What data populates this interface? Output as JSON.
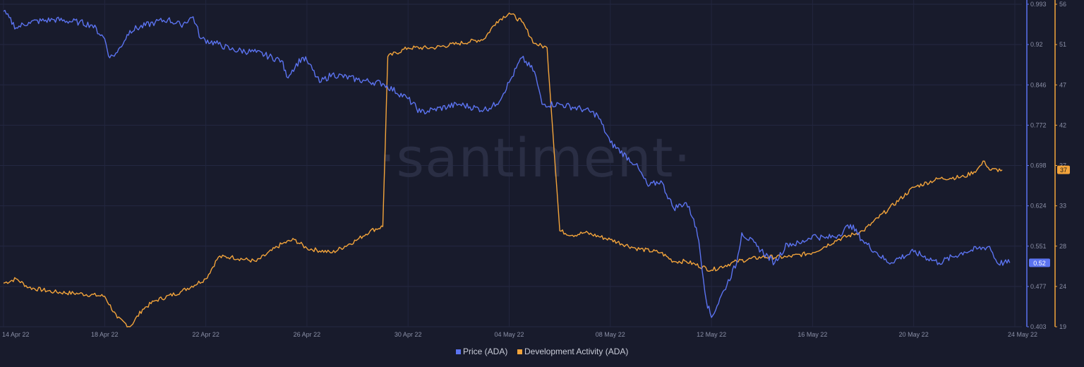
{
  "chart_data": {
    "type": "line",
    "watermark": "·santiment·",
    "x_ticks": [
      "14 Apr 22",
      "18 Apr 22",
      "22 Apr 22",
      "26 Apr 22",
      "30 Apr 22",
      "04 May 22",
      "08 May 22",
      "12 May 22",
      "16 May 22",
      "20 May 22",
      "24 May 22"
    ],
    "x_range_days": [
      0,
      40
    ],
    "y_left": {
      "ticks": [
        "0.993",
        "0.92",
        "0.846",
        "0.772",
        "0.698",
        "0.624",
        "0.551",
        "0.477",
        "0.403"
      ],
      "range": [
        0.403,
        0.993
      ]
    },
    "y_right": {
      "ticks": [
        "56",
        "51",
        "47",
        "42",
        "37",
        "33",
        "28",
        "24",
        "19"
      ],
      "range": [
        19,
        56
      ]
    },
    "grid": true,
    "legend_position": "bottom-center",
    "series": [
      {
        "name": "Price (ADA)",
        "color": "#5b73f0",
        "axis": "left",
        "last_label": "0.52",
        "points": [
          [
            0,
            0.98
          ],
          [
            0.5,
            0.95
          ],
          [
            1,
            0.96
          ],
          [
            2,
            0.965
          ],
          [
            3,
            0.96
          ],
          [
            3.5,
            0.955
          ],
          [
            4,
            0.93
          ],
          [
            4.2,
            0.895
          ],
          [
            4.5,
            0.905
          ],
          [
            5,
            0.945
          ],
          [
            6,
            0.96
          ],
          [
            6.5,
            0.965
          ],
          [
            7,
            0.955
          ],
          [
            7.5,
            0.97
          ],
          [
            7.8,
            0.93
          ],
          [
            8.5,
            0.92
          ],
          [
            9,
            0.91
          ],
          [
            10,
            0.905
          ],
          [
            11,
            0.89
          ],
          [
            11.2,
            0.86
          ],
          [
            11.8,
            0.895
          ],
          [
            12,
            0.89
          ],
          [
            12.5,
            0.85
          ],
          [
            13,
            0.865
          ],
          [
            14,
            0.855
          ],
          [
            15,
            0.848
          ],
          [
            16,
            0.82
          ],
          [
            16.5,
            0.795
          ],
          [
            17,
            0.8
          ],
          [
            18,
            0.81
          ],
          [
            19,
            0.8
          ],
          [
            19.5,
            0.81
          ],
          [
            20,
            0.85
          ],
          [
            20.5,
            0.895
          ],
          [
            21,
            0.87
          ],
          [
            21.3,
            0.81
          ],
          [
            22,
            0.81
          ],
          [
            23,
            0.8
          ],
          [
            23.5,
            0.79
          ],
          [
            24,
            0.74
          ],
          [
            25,
            0.7
          ],
          [
            25.5,
            0.66
          ],
          [
            26,
            0.67
          ],
          [
            26.5,
            0.62
          ],
          [
            27,
            0.63
          ],
          [
            27.3,
            0.6
          ],
          [
            27.5,
            0.56
          ],
          [
            27.8,
            0.45
          ],
          [
            28,
            0.42
          ],
          [
            28.5,
            0.47
          ],
          [
            29,
            0.52
          ],
          [
            29.2,
            0.575
          ],
          [
            29.8,
            0.55
          ],
          [
            30.5,
            0.52
          ],
          [
            31,
            0.555
          ],
          [
            31.5,
            0.555
          ],
          [
            32,
            0.57
          ],
          [
            32.5,
            0.565
          ],
          [
            33,
            0.57
          ],
          [
            33.5,
            0.59
          ],
          [
            34,
            0.56
          ],
          [
            34.5,
            0.54
          ],
          [
            35,
            0.52
          ],
          [
            36,
            0.54
          ],
          [
            37,
            0.52
          ],
          [
            38,
            0.54
          ],
          [
            39,
            0.55
          ],
          [
            39.3,
            0.52
          ],
          [
            39.8,
            0.52
          ]
        ]
      },
      {
        "name": "Development Activity (ADA)",
        "color": "#f3a43b",
        "axis": "right",
        "last_label": "37",
        "points": [
          [
            0,
            24
          ],
          [
            0.5,
            24.5
          ],
          [
            1,
            23.5
          ],
          [
            2,
            23
          ],
          [
            3,
            22.8
          ],
          [
            4,
            22.5
          ],
          [
            4.5,
            20
          ],
          [
            5,
            19
          ],
          [
            5.5,
            21
          ],
          [
            6,
            22
          ],
          [
            7,
            23
          ],
          [
            8,
            24.5
          ],
          [
            8.5,
            27
          ],
          [
            9,
            27
          ],
          [
            10,
            26.5
          ],
          [
            11,
            28.5
          ],
          [
            11.5,
            29
          ],
          [
            12,
            28
          ],
          [
            13,
            27.5
          ],
          [
            14,
            29
          ],
          [
            14.5,
            30
          ],
          [
            15,
            30.5
          ],
          [
            15.2,
            50
          ],
          [
            16,
            51
          ],
          [
            17,
            51
          ],
          [
            18,
            51.5
          ],
          [
            19,
            52
          ],
          [
            19.5,
            54
          ],
          [
            20,
            55
          ],
          [
            20.5,
            54
          ],
          [
            21,
            51.5
          ],
          [
            21.5,
            51
          ],
          [
            22,
            30
          ],
          [
            22.5,
            29.5
          ],
          [
            23,
            29.8
          ],
          [
            24,
            29
          ],
          [
            25,
            28
          ],
          [
            26,
            27.5
          ],
          [
            26.5,
            26.5
          ],
          [
            27,
            26.5
          ],
          [
            28,
            25.5
          ],
          [
            29,
            26.5
          ],
          [
            30,
            27
          ],
          [
            31,
            27
          ],
          [
            32,
            27.5
          ],
          [
            33,
            29
          ],
          [
            34,
            30
          ],
          [
            35,
            32.5
          ],
          [
            36,
            35
          ],
          [
            37,
            36
          ],
          [
            38,
            36.2
          ],
          [
            38.5,
            37
          ],
          [
            38.8,
            38
          ],
          [
            39,
            37
          ],
          [
            39.5,
            37
          ]
        ]
      }
    ],
    "legend": [
      {
        "label": "Price (ADA)",
        "color": "#5b73f0"
      },
      {
        "label": "Development Activity (ADA)",
        "color": "#f3a43b"
      }
    ]
  }
}
